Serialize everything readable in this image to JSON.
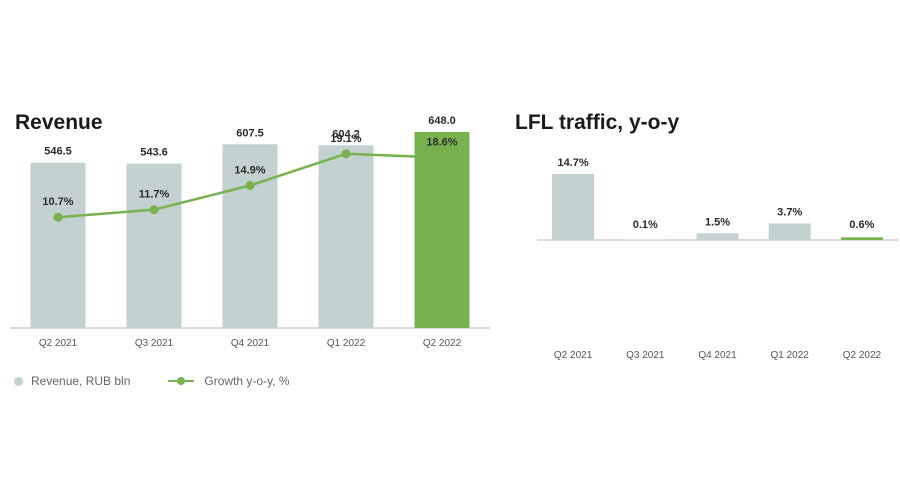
{
  "colors": {
    "bar": "#c3d1d1",
    "highlight": "#78b24e",
    "axis": "#b5b5b5"
  },
  "chart_data": [
    {
      "type": "bar",
      "title": "Revenue",
      "categories": [
        "Q2 2021",
        "Q3 2021",
        "Q4 2021",
        "Q1 2022",
        "Q2 2022"
      ],
      "series": [
        {
          "name": "Revenue, RUB bln",
          "type": "bar",
          "values": [
            546.5,
            543.6,
            607.5,
            604.2,
            648.0
          ],
          "labels": [
            "546.5",
            "543.6",
            "607.5",
            "604.2",
            "648.0"
          ]
        },
        {
          "name": "Growth y-o-y, %",
          "type": "line",
          "values": [
            10.7,
            11.7,
            14.9,
            19.1,
            18.6
          ],
          "labels": [
            "10.7%",
            "11.7%",
            "14.9%",
            "19.1%",
            "18.6%"
          ]
        }
      ],
      "highlight_index": 4,
      "legend_position": "bottom-left"
    },
    {
      "type": "bar",
      "title": "LFL traffic, y-o-y",
      "categories": [
        "Q2 2021",
        "Q3 2021",
        "Q4 2021",
        "Q1 2022",
        "Q2 2022"
      ],
      "values": [
        14.7,
        0.1,
        1.5,
        3.7,
        0.6
      ],
      "labels": [
        "14.7%",
        "0.1%",
        "1.5%",
        "3.7%",
        "0.6%"
      ],
      "highlight_index": 4
    }
  ]
}
